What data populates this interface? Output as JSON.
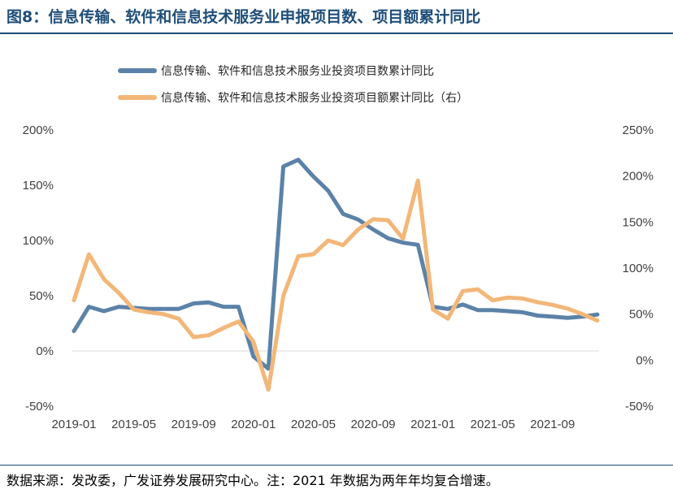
{
  "header": {
    "title": "图8：信息传输、软件和信息技术服务业申报项目数、项目额累计同比"
  },
  "footer": {
    "source": "数据来源：发改委，广发证券发展研究中心。注：2021 年数据为两年年均复合增速。"
  },
  "chart_data": {
    "type": "line",
    "title": "图8：信息传输、软件和信息技术服务业申报项目数、项目额累计同比",
    "x_tick_labels": [
      "2019-01",
      "2019-05",
      "2019-09",
      "2020-01",
      "2020-05",
      "2020-09",
      "2021-01",
      "2021-05",
      "2021-09"
    ],
    "left_axis": {
      "range": [
        -50,
        200
      ],
      "ticks": [
        -50,
        0,
        50,
        100,
        150,
        200
      ],
      "tick_labels": [
        "-50%",
        "0%",
        "50%",
        "100%",
        "150%",
        "200%"
      ]
    },
    "right_axis": {
      "range": [
        -50,
        250
      ],
      "ticks": [
        -50,
        0,
        50,
        100,
        150,
        200,
        250
      ],
      "tick_labels": [
        "-50%",
        "0%",
        "50%",
        "100%",
        "150%",
        "200%",
        "250%"
      ]
    },
    "legend_position": "top",
    "grid": false,
    "series": [
      {
        "name": "信息传输、软件和信息技术服务业投资项目数累计同比",
        "axis": "left",
        "unit": "%",
        "color": "#5b82a8",
        "points": [
          [
            "2019-01",
            18
          ],
          [
            "2019-02",
            40
          ],
          [
            "2019-03",
            36
          ],
          [
            "2019-04",
            40
          ],
          [
            "2019-05",
            39
          ],
          [
            "2019-06",
            38
          ],
          [
            "2019-07",
            38
          ],
          [
            "2019-08",
            38
          ],
          [
            "2019-09",
            43
          ],
          [
            "2019-10",
            44
          ],
          [
            "2019-11",
            40
          ],
          [
            "2019-12",
            40
          ],
          [
            "2020-01",
            -5
          ],
          [
            "2020-02",
            -16
          ],
          [
            "2020-03",
            167
          ],
          [
            "2020-04",
            173
          ],
          [
            "2020-05",
            158
          ],
          [
            "2020-06",
            145
          ],
          [
            "2020-07",
            124
          ],
          [
            "2020-08",
            119
          ],
          [
            "2020-09",
            110
          ],
          [
            "2020-10",
            102
          ],
          [
            "2020-11",
            98
          ],
          [
            "2020-12",
            96
          ],
          [
            "2021-01",
            40
          ],
          [
            "2021-02",
            38
          ],
          [
            "2021-03",
            42
          ],
          [
            "2021-04",
            37
          ],
          [
            "2021-05",
            37
          ],
          [
            "2021-06",
            36
          ],
          [
            "2021-07",
            35
          ],
          [
            "2021-08",
            32
          ],
          [
            "2021-09",
            31
          ],
          [
            "2021-10",
            30
          ],
          [
            "2021-11",
            31
          ],
          [
            "2021-12",
            33
          ]
        ]
      },
      {
        "name": "信息传输、软件和信息技术服务业投资项目额累计同比（右）",
        "axis": "right",
        "unit": "%",
        "color": "#f2b778",
        "points": [
          [
            "2019-01",
            65
          ],
          [
            "2019-02",
            115
          ],
          [
            "2019-03",
            88
          ],
          [
            "2019-04",
            73
          ],
          [
            "2019-05",
            55
          ],
          [
            "2019-06",
            52
          ],
          [
            "2019-07",
            50
          ],
          [
            "2019-08",
            45
          ],
          [
            "2019-09",
            25
          ],
          [
            "2019-10",
            27
          ],
          [
            "2019-11",
            35
          ],
          [
            "2019-12",
            42
          ],
          [
            "2020-01",
            20
          ],
          [
            "2020-02",
            -32
          ],
          [
            "2020-03",
            70
          ],
          [
            "2020-04",
            113
          ],
          [
            "2020-05",
            115
          ],
          [
            "2020-06",
            130
          ],
          [
            "2020-07",
            125
          ],
          [
            "2020-08",
            142
          ],
          [
            "2020-09",
            153
          ],
          [
            "2020-10",
            152
          ],
          [
            "2020-11",
            132
          ],
          [
            "2020-12",
            195
          ],
          [
            "2021-01",
            55
          ],
          [
            "2021-02",
            45
          ],
          [
            "2021-03",
            75
          ],
          [
            "2021-04",
            77
          ],
          [
            "2021-05",
            65
          ],
          [
            "2021-06",
            68
          ],
          [
            "2021-07",
            67
          ],
          [
            "2021-08",
            63
          ],
          [
            "2021-09",
            60
          ],
          [
            "2021-10",
            56
          ],
          [
            "2021-11",
            50
          ],
          [
            "2021-12",
            43
          ]
        ]
      }
    ]
  }
}
